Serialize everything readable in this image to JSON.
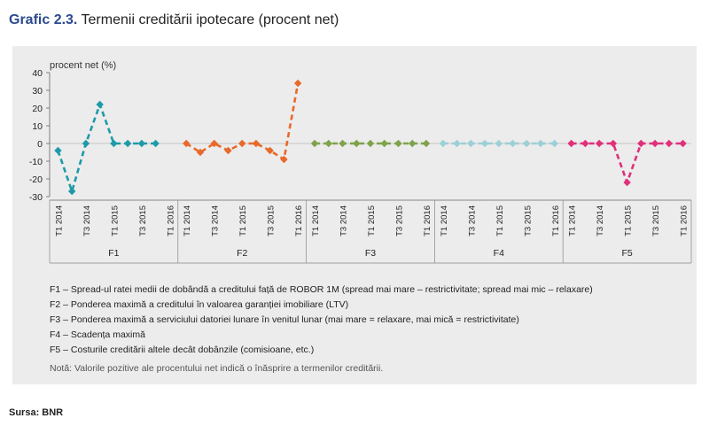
{
  "title": {
    "prefix": "Grafic 2.3.",
    "text": "Termenii creditării ipotecare (procent net)"
  },
  "chart_data": {
    "type": "line",
    "ylabel": "procent net (%)",
    "ylim": [
      -30,
      40
    ],
    "yticks": [
      40,
      30,
      20,
      10,
      0,
      -10,
      -20,
      -30
    ],
    "grid": false,
    "line_style": "dashed",
    "x_ticks": [
      "T1 2014",
      "T3 2014",
      "T1 2015",
      "T3 2015",
      "T1 2016"
    ],
    "groups": [
      {
        "name": "F1",
        "color": "#1e9aa8",
        "values": [
          -4,
          -27,
          0,
          22,
          0,
          0,
          0,
          0,
          null
        ]
      },
      {
        "name": "F2",
        "color": "#e8692a",
        "values": [
          0,
          -5,
          0,
          -4,
          0,
          0,
          -4,
          -9,
          34
        ]
      },
      {
        "name": "F3",
        "color": "#7ea34a",
        "values": [
          0,
          0,
          0,
          0,
          0,
          0,
          0,
          0,
          0
        ]
      },
      {
        "name": "F4",
        "color": "#9ccfd6",
        "values": [
          0,
          0,
          0,
          0,
          0,
          0,
          0,
          0,
          0
        ]
      },
      {
        "name": "F5",
        "color": "#e0307a",
        "values": [
          0,
          0,
          0,
          0,
          -22,
          0,
          0,
          0,
          0
        ]
      }
    ]
  },
  "legend": [
    "F1 – Spread-ul ratei medii de dobândă a creditului față de ROBOR 1M (spread mai mare – restrictivitate; spread mai mic – relaxare)",
    "F2 – Ponderea maximă a creditului în valoarea garanției imobiliare (LTV)",
    "F3 – Ponderea maximă a serviciului datoriei lunare în venitul lunar (mai mare = relaxare, mai mică = restrictivitate)",
    "F4 – Scadența maximă",
    "F5 – Costurile creditării altele decât dobânzile (comisioane, etc.)"
  ],
  "note": "Notă: Valorile pozitive ale procentului net indică o înăsprire a termenilor creditării.",
  "source": "Sursa: BNR"
}
